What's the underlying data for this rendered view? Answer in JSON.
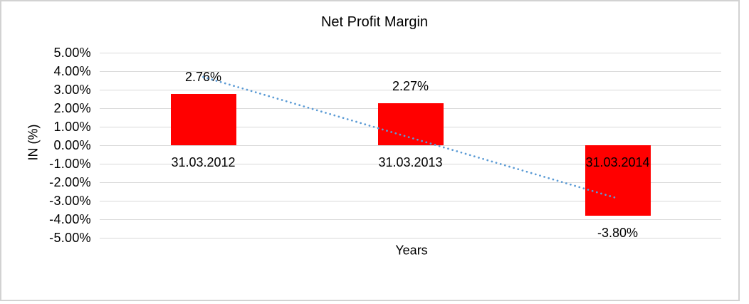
{
  "chart_data": {
    "type": "bar",
    "title": "Net Profit Margin",
    "xlabel": "Years",
    "ylabel": "IN (%)",
    "categories": [
      "31.03.2012",
      "31.03.2013",
      "31.03.2014"
    ],
    "series": [
      {
        "name": "Net Profit Margin",
        "values": [
          2.76,
          2.27,
          -3.8
        ],
        "data_labels": [
          "2.76%",
          "2.27%",
          "-3.80%"
        ],
        "color": "#ff0000"
      }
    ],
    "ylim": [
      -5,
      5
    ],
    "ytick_step": 1,
    "ytick_labels": [
      "5.00%",
      "4.00%",
      "3.00%",
      "2.00%",
      "1.00%",
      "0.00%",
      "-1.00%",
      "-2.00%",
      "-3.00%",
      "-4.00%",
      "-5.00%"
    ],
    "grid": true,
    "gridline_color": "#d9d9d9",
    "legend": "none",
    "trendline": {
      "type": "linear",
      "style": "dotted",
      "color": "#5b9bd5",
      "start_value": 3.69,
      "end_value": -2.87
    }
  }
}
